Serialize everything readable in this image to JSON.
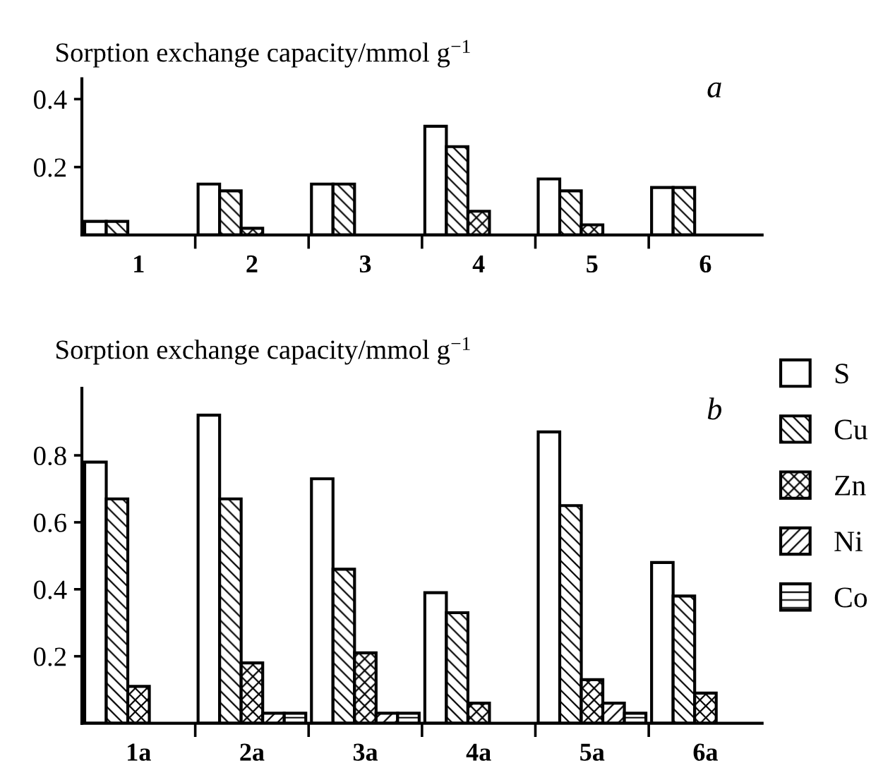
{
  "chart_data": [
    {
      "type": "bar",
      "ylabel": "Sorption exchange capacity/mmol g$^{−1}$",
      "annotations": [
        "a"
      ],
      "categories": [
        "1",
        "2",
        "3",
        "4",
        "5",
        "6"
      ],
      "ylim": [
        0,
        0.46
      ],
      "yticks": [
        0.2,
        0.4
      ],
      "grid": false,
      "legend": false,
      "series": [
        {
          "color": "#ffffff",
          "values": [
            0.04,
            0.15,
            0.15,
            0.32,
            0.165,
            0.14
          ]
        },
        {
          "color": "#000000",
          "values": [
            0.04,
            0.13,
            0.15,
            0.26,
            0.13,
            0.14
          ]
        },
        {
          "color": "#000000",
          "values": [
            null,
            0.02,
            null,
            0.07,
            0.03,
            null
          ]
        }
      ]
    },
    {
      "type": "bar",
      "ylabel": "Sorption exchange capacity/mmol g$^{−1}$",
      "annotations": [
        "b"
      ],
      "categories": [
        "1a",
        "2a",
        "3a",
        "4a",
        "5a",
        "6a"
      ],
      "ylim": [
        0,
        1.0
      ],
      "yticks": [
        0.2,
        0.4,
        0.6,
        0.8
      ],
      "grid": false,
      "legend": "right",
      "series": [
        {
          "name": "S",
          "color": "#ffffff",
          "values": [
            0.78,
            0.92,
            0.73,
            0.39,
            0.87,
            0.48
          ]
        },
        {
          "name": "Cu",
          "color": "#000000",
          "values": [
            0.67,
            0.67,
            0.46,
            0.33,
            0.65,
            0.38
          ]
        },
        {
          "name": "Zn",
          "color": "#000000",
          "values": [
            0.11,
            0.18,
            0.21,
            0.06,
            0.13,
            0.09
          ]
        },
        {
          "name": "Ni",
          "color": "#000000",
          "values": [
            null,
            0.03,
            0.03,
            null,
            0.06,
            null
          ]
        },
        {
          "name": "Co",
          "color": "#000000",
          "values": [
            null,
            0.03,
            0.03,
            null,
            0.03,
            null
          ]
        }
      ]
    }
  ]
}
